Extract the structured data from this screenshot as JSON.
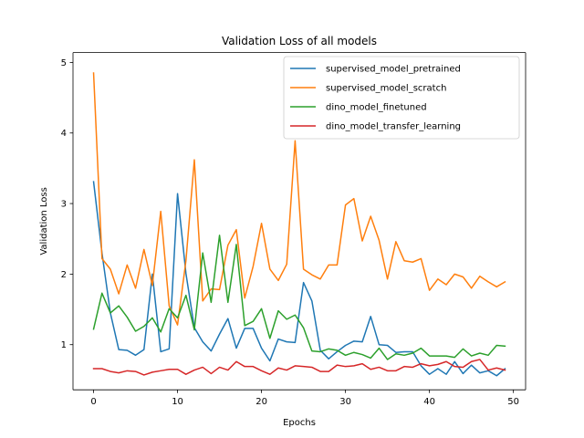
{
  "chart_data": {
    "type": "line",
    "title": "Validation Loss of all models",
    "xlabel": "Epochs",
    "ylabel": "Validation Loss",
    "xlim": [
      -2.45,
      51.45
    ],
    "ylim": [
      0.36,
      5.14
    ],
    "xticks": [
      0,
      10,
      20,
      30,
      40,
      50
    ],
    "yticks": [
      1,
      2,
      3,
      4,
      5
    ],
    "legend_position": "top-right",
    "grid": false,
    "x": [
      0,
      1,
      2,
      3,
      4,
      5,
      6,
      7,
      8,
      9,
      10,
      11,
      12,
      13,
      14,
      15,
      16,
      17,
      18,
      19,
      20,
      21,
      22,
      23,
      24,
      25,
      26,
      27,
      28,
      29,
      30,
      31,
      32,
      33,
      34,
      35,
      36,
      37,
      38,
      39,
      40,
      41,
      42,
      43,
      44,
      45,
      46,
      47,
      48,
      49
    ],
    "series": [
      {
        "name": "supervised_model_pretrained",
        "color": "#1f77b4",
        "values": [
          3.31,
          2.3,
          1.45,
          0.93,
          0.92,
          0.85,
          0.93,
          2.0,
          0.9,
          0.94,
          3.14,
          2.01,
          1.24,
          1.04,
          0.91,
          1.15,
          1.37,
          0.95,
          1.23,
          1.23,
          0.95,
          0.77,
          1.08,
          1.04,
          1.03,
          1.88,
          1.62,
          0.92,
          0.8,
          0.9,
          0.99,
          1.05,
          1.04,
          1.4,
          1.0,
          0.99,
          0.89,
          0.9,
          0.9,
          0.7,
          0.58,
          0.66,
          0.58,
          0.76,
          0.59,
          0.71,
          0.6,
          0.63,
          0.56,
          0.66
        ]
      },
      {
        "name": "supervised_model_scratch",
        "color": "#ff7f0e",
        "values": [
          4.85,
          2.22,
          2.07,
          1.72,
          2.13,
          1.8,
          2.35,
          1.84,
          2.89,
          1.55,
          1.28,
          2.19,
          3.62,
          1.62,
          1.79,
          1.78,
          2.41,
          2.63,
          1.66,
          2.11,
          2.72,
          2.07,
          1.91,
          2.14,
          3.89,
          2.07,
          1.99,
          1.93,
          2.13,
          2.13,
          2.98,
          3.07,
          2.47,
          2.82,
          2.48,
          1.93,
          2.46,
          2.19,
          2.17,
          2.22,
          1.77,
          1.93,
          1.85,
          2.0,
          1.96,
          1.8,
          1.97,
          1.89,
          1.82,
          1.89
        ]
      },
      {
        "name": "dino_model_finetuned",
        "color": "#2ca02c",
        "values": [
          1.22,
          1.73,
          1.45,
          1.55,
          1.39,
          1.19,
          1.26,
          1.38,
          1.18,
          1.51,
          1.38,
          1.7,
          1.21,
          2.3,
          1.6,
          2.55,
          1.6,
          2.42,
          1.27,
          1.33,
          1.51,
          1.09,
          1.48,
          1.36,
          1.42,
          1.24,
          0.91,
          0.9,
          0.94,
          0.92,
          0.85,
          0.89,
          0.86,
          0.81,
          0.95,
          0.79,
          0.87,
          0.85,
          0.88,
          0.95,
          0.84,
          0.84,
          0.84,
          0.82,
          0.94,
          0.84,
          0.88,
          0.85,
          0.99,
          0.98
        ]
      },
      {
        "name": "dino_model_transfer_learning",
        "color": "#d62728",
        "values": [
          0.66,
          0.66,
          0.62,
          0.6,
          0.63,
          0.62,
          0.57,
          0.61,
          0.63,
          0.65,
          0.65,
          0.58,
          0.64,
          0.68,
          0.59,
          0.68,
          0.64,
          0.76,
          0.69,
          0.69,
          0.63,
          0.58,
          0.67,
          0.64,
          0.7,
          0.69,
          0.68,
          0.62,
          0.62,
          0.71,
          0.69,
          0.7,
          0.73,
          0.65,
          0.68,
          0.63,
          0.63,
          0.69,
          0.68,
          0.73,
          0.7,
          0.72,
          0.76,
          0.69,
          0.68,
          0.76,
          0.79,
          0.64,
          0.67,
          0.64
        ]
      }
    ]
  }
}
